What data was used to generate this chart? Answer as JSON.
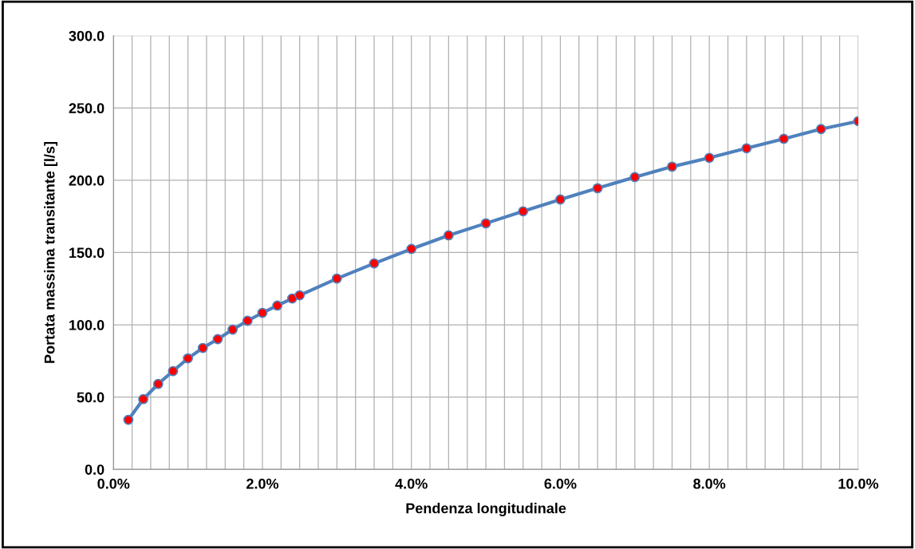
{
  "chart_data": {
    "type": "line",
    "xlabel": "Pendenza longitudinale",
    "ylabel": "Portata massima transitante [l/s]",
    "x": [
      0.2,
      0.4,
      0.6,
      0.8,
      1.0,
      1.2,
      1.4,
      1.6,
      1.8,
      2.0,
      2.2,
      2.4,
      2.5,
      3.0,
      3.5,
      4.0,
      4.5,
      5.0,
      5.5,
      6.0,
      6.5,
      7.0,
      7.5,
      8.0,
      8.5,
      9.0,
      9.5,
      10.0
    ],
    "series": [
      {
        "color": "#4f81bd",
        "colors": [
          "#ff0000",
          "#ff0000",
          "#ff0000",
          "#ff0000",
          "#ff0000",
          "#ff0000",
          "#ff0000",
          "#ff0000",
          "#ff0000",
          "#ff0000",
          "#ff0000",
          "#ff0000",
          "#ff0000",
          "#ff0000",
          "#ff0000",
          "#ff0000",
          "#ff0000",
          "#ff0000",
          "#ff0000",
          "#ff0000",
          "#ff0000",
          "#ff0000",
          "#ff0000",
          "#ff0000",
          "#ff0000",
          "#ff0000",
          "#ff0000",
          "#ff0000"
        ],
        "values": [
          34.3,
          48.6,
          59.1,
          68.0,
          76.8,
          84.0,
          90.1,
          96.7,
          102.8,
          108.3,
          113.3,
          118.2,
          120.4,
          132.0,
          142.5,
          152.5,
          161.9,
          170.2,
          178.5,
          186.7,
          194.5,
          202.2,
          209.4,
          215.5,
          222.1,
          228.7,
          235.4,
          240.9
        ]
      }
    ],
    "xlim": [
      0,
      10
    ],
    "xticks": [
      {
        "value": 0,
        "label": "0.0%"
      },
      {
        "value": 0.25,
        "label": null
      },
      {
        "value": 0.5,
        "label": null
      },
      {
        "value": 0.75,
        "label": null
      },
      {
        "value": 1,
        "label": null
      },
      {
        "value": 1.25,
        "label": null
      },
      {
        "value": 1.5,
        "label": null
      },
      {
        "value": 1.75,
        "label": null
      },
      {
        "value": 2,
        "label": "2.0%"
      },
      {
        "value": 2.25,
        "label": null
      },
      {
        "value": 2.5,
        "label": null
      },
      {
        "value": 2.75,
        "label": null
      },
      {
        "value": 3,
        "label": null
      },
      {
        "value": 3.25,
        "label": null
      },
      {
        "value": 3.5,
        "label": null
      },
      {
        "value": 3.75,
        "label": null
      },
      {
        "value": 4,
        "label": "4.0%"
      },
      {
        "value": 4.25,
        "label": null
      },
      {
        "value": 4.5,
        "label": null
      },
      {
        "value": 4.75,
        "label": null
      },
      {
        "value": 5,
        "label": null
      },
      {
        "value": 5.25,
        "label": null
      },
      {
        "value": 5.5,
        "label": null
      },
      {
        "value": 5.75,
        "label": null
      },
      {
        "value": 6,
        "label": "6.0%"
      },
      {
        "value": 6.25,
        "label": null
      },
      {
        "value": 6.5,
        "label": null
      },
      {
        "value": 6.75,
        "label": null
      },
      {
        "value": 7,
        "label": null
      },
      {
        "value": 7.25,
        "label": null
      },
      {
        "value": 7.5,
        "label": null
      },
      {
        "value": 7.75,
        "label": null
      },
      {
        "value": 8,
        "label": "8.0%"
      },
      {
        "value": 8.25,
        "label": null
      },
      {
        "value": 8.5,
        "label": null
      },
      {
        "value": 8.75,
        "label": null
      },
      {
        "value": 9,
        "label": null
      },
      {
        "value": 9.25,
        "label": null
      },
      {
        "value": 9.5,
        "label": null
      },
      {
        "value": 9.75,
        "label": null
      },
      {
        "value": 10,
        "label": "10.0%"
      }
    ],
    "ylim": [
      0,
      300
    ],
    "yticks": [
      {
        "value": 0,
        "label": "0.0"
      },
      {
        "value": 50,
        "label": "50.0"
      },
      {
        "value": 100,
        "label": "100.0"
      },
      {
        "value": 150,
        "label": "150.0"
      },
      {
        "value": 200,
        "label": "200.0"
      },
      {
        "value": 250,
        "label": "250.0"
      },
      {
        "value": 300,
        "label": "300.0"
      }
    ],
    "grid": true,
    "marker": "circle",
    "line_style": "solid"
  }
}
